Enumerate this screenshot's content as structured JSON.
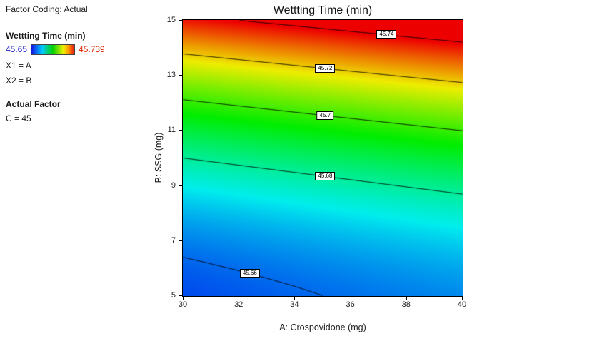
{
  "sidebar": {
    "factor_coding": "Factor Coding: Actual",
    "response_label": "Wettting Time (min)",
    "legend": {
      "min": "45.65",
      "max": "45.739",
      "min_color": "#2424cc",
      "max_color": "#dd2200"
    },
    "x1": "X1 = A",
    "x2": "X2 = B",
    "actual_factor_heading": "Actual Factor",
    "actual_factor_value": "C = 45"
  },
  "chart_data": {
    "type": "contour",
    "title": "Wettting Time (min)",
    "xlabel": "A: Crospovidone (mg)",
    "ylabel": "B: SSG (mg)",
    "xlim": [
      30,
      40
    ],
    "ylim": [
      5,
      15
    ],
    "xticks": [
      "30",
      "32",
      "34",
      "36",
      "38",
      "40"
    ],
    "yticks": [
      "5",
      "7",
      "9",
      "11",
      "13",
      "15"
    ],
    "zmin": 45.65,
    "zmax": 45.739,
    "contour_levels": [
      45.66,
      45.68,
      45.7,
      45.72,
      45.74
    ],
    "contour_labels": [
      {
        "text": "45.66",
        "level": 45.66,
        "a": 32.4
      },
      {
        "text": "45.68",
        "level": 45.68,
        "a": 35.1
      },
      {
        "text": "45.7",
        "level": 45.7,
        "a": 35.1
      },
      {
        "text": "45.72",
        "level": 45.72,
        "a": 35.1
      },
      {
        "text": "45.74",
        "level": 45.74,
        "a": 37.3
      }
    ],
    "surface": {
      "note": "approx fitted response f(u,v); u=(A-30)/10, v=(B-5)/10; f = bilinear(f00,f10,f01,f11) - q*v*(1-v)",
      "f00": 45.657,
      "f10": 45.663,
      "f01": 45.737,
      "f11": 45.752,
      "q": 0.068
    },
    "colormap": {
      "hue_start": 240,
      "hue_end": 0,
      "saturation": 1,
      "value": 0.93
    },
    "contour_line_color": "#000000"
  }
}
